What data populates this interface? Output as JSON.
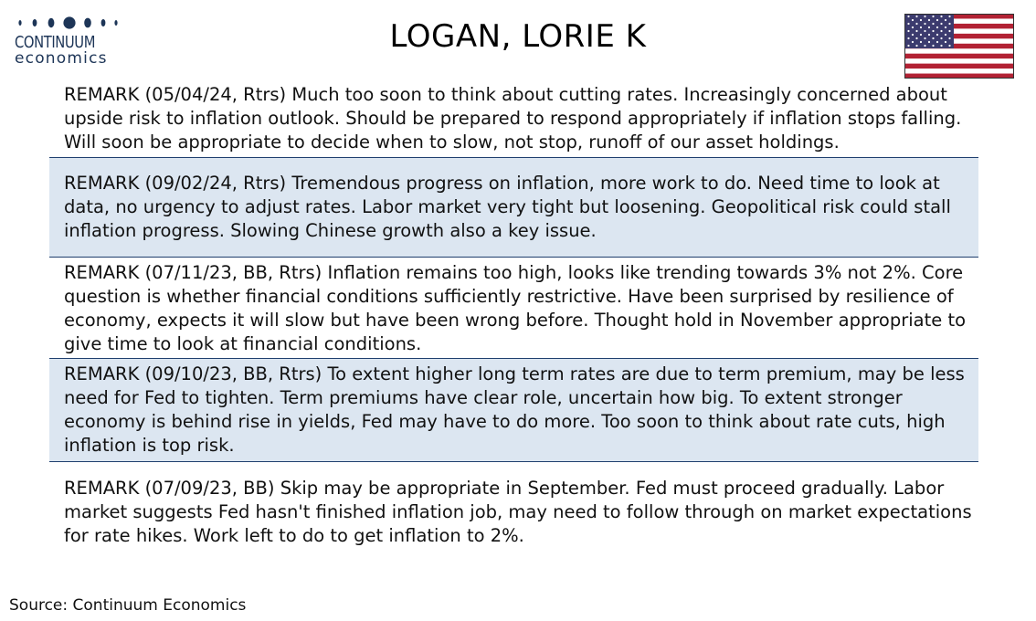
{
  "header": {
    "logo": {
      "line1": "CONTINUUM",
      "line2": "economics"
    },
    "title": "LOGAN, LORIE K",
    "flag_icon": "us-flag-icon"
  },
  "remarks": [
    {
      "text": "REMARK (05/04/24, Rtrs) Much too soon to think about cutting rates. Increasingly concerned about upside risk to inflation outlook. Should be prepared to respond appropriately if inflation stops falling. Will soon be appropriate to decide when to slow, not stop, runoff of our asset holdings."
    },
    {
      "text": "REMARK (09/02/24, Rtrs) Tremendous progress on inflation, more work to do. Need time to look at data, no urgency to adjust rates. Labor market very tight but loosening. Geopolitical risk could stall inflation progress. Slowing Chinese growth also a key issue."
    },
    {
      "text": "REMARK (07/11/23, BB, Rtrs) Inflation remains too high, looks like trending towards 3% not 2%. Core question is whether financial conditions sufficiently restrictive. Have been surprised by resilience of economy, expects it will slow but have been wrong before. Thought hold in November appropriate to give time to look at financial conditions."
    },
    {
      "text": "REMARK (09/10/23, BB, Rtrs) To extent higher long term rates are due to term premium, may be less need for Fed to tighten. Term premiums have clear role, uncertain how big. To extent stronger economy is behind rise in yields, Fed may have to do more. Too soon to think about rate cuts, high inflation is top risk."
    },
    {
      "text": "REMARK (07/09/23, BB) Skip may be appropriate in September. Fed must proceed gradually. Labor market suggests Fed hasn't finished inflation job, may need to follow through on market expectations for rate hikes. Work left to do to get inflation to 2%."
    }
  ],
  "footer": {
    "source": "Source: Continuum Economics"
  },
  "colors": {
    "shaded_row": "#dce6f1",
    "divider": "#1f3f6e",
    "logo": "#1d3557",
    "flag_red": "#b22234",
    "flag_blue": "#3c3b6e"
  }
}
